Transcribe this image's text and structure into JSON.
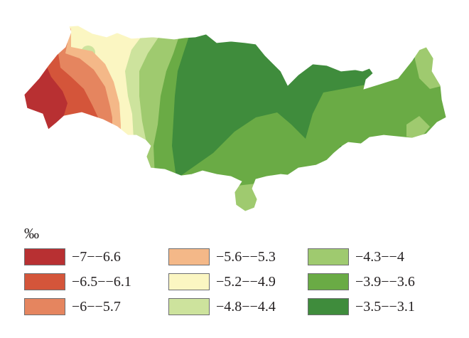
{
  "legend": {
    "title": "‰",
    "items": [
      {
        "label": "−7−−6.6",
        "color": "#b83032"
      },
      {
        "label": "−6.5−−6.1",
        "color": "#d4553a"
      },
      {
        "label": "−6−−5.7",
        "color": "#e5855f"
      },
      {
        "label": "−5.6−−5.3",
        "color": "#f4b888"
      },
      {
        "label": "−5.2−−4.9",
        "color": "#fbf6c2"
      },
      {
        "label": "−4.8−−4.4",
        "color": "#cde39d"
      },
      {
        "label": "−4.3−−4",
        "color": "#9fca6f"
      },
      {
        "label": "−3.9−−3.6",
        "color": "#6aab45"
      },
      {
        "label": "−3.5−−3.1",
        "color": "#3f8c3c"
      }
    ]
  }
}
